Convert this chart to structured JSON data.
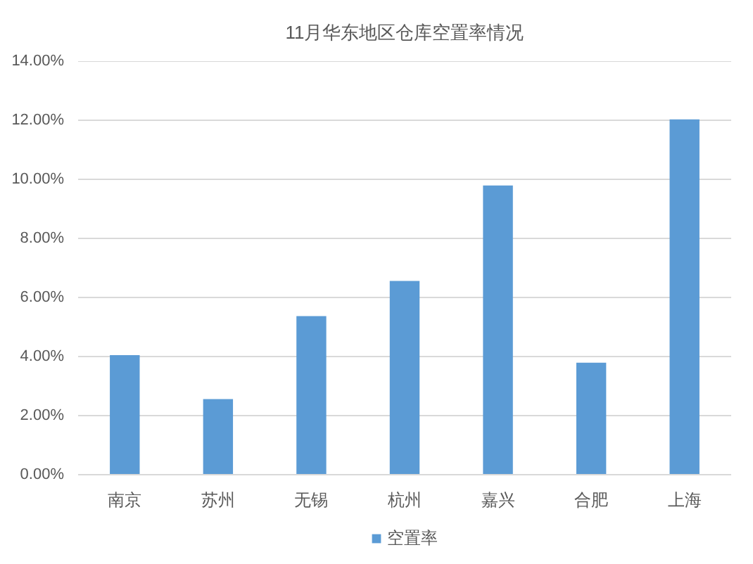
{
  "chart_data": {
    "type": "bar",
    "title": "11月华东地区仓库空置率情况",
    "categories": [
      "南京",
      "苏州",
      "无锡",
      "杭州",
      "嘉兴",
      "合肥",
      "上海"
    ],
    "series": [
      {
        "name": "空置率",
        "color": "#5b9bd5",
        "values": [
          4.05,
          2.56,
          5.37,
          6.56,
          9.79,
          3.79,
          12.03
        ]
      }
    ],
    "ylim": [
      0,
      14
    ],
    "yticks": [
      {
        "value": 0,
        "label": "0.00%"
      },
      {
        "value": 2,
        "label": "2.00%"
      },
      {
        "value": 4,
        "label": "4.00%"
      },
      {
        "value": 6,
        "label": "6.00%"
      },
      {
        "value": 8,
        "label": "8.00%"
      },
      {
        "value": 10,
        "label": "10.00%"
      },
      {
        "value": 12,
        "label": "12.00%"
      },
      {
        "value": 14,
        "label": "14.00%"
      }
    ],
    "grid": "y",
    "legend": "bottom"
  }
}
